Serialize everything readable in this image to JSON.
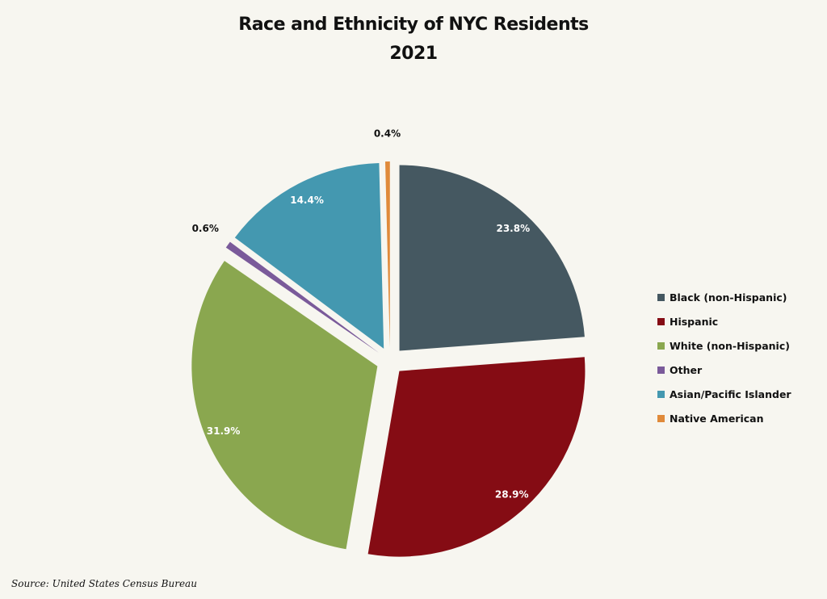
{
  "chart_data": {
    "type": "pie",
    "title": "Race and Ethnicity of NYC Residents",
    "subtitle": "2021",
    "categories": [
      "Black (non-Hispanic)",
      "Hispanic",
      "White (non-Hispanic)",
      "Other",
      "Asian/Pacific Islander",
      "Native American"
    ],
    "values": [
      23.8,
      28.9,
      31.9,
      0.6,
      14.4,
      0.4
    ],
    "labels": [
      "23.8%",
      "28.9%",
      "31.9%",
      "0.6%",
      "14.4%",
      "0.4%"
    ],
    "colors": [
      "#455861",
      "#850C14",
      "#8AA74F",
      "#7A5A9A",
      "#4498B0",
      "#E08A3A"
    ],
    "legend_placement": "right",
    "exploded": true
  },
  "source": "Source: United States Census Bureau"
}
